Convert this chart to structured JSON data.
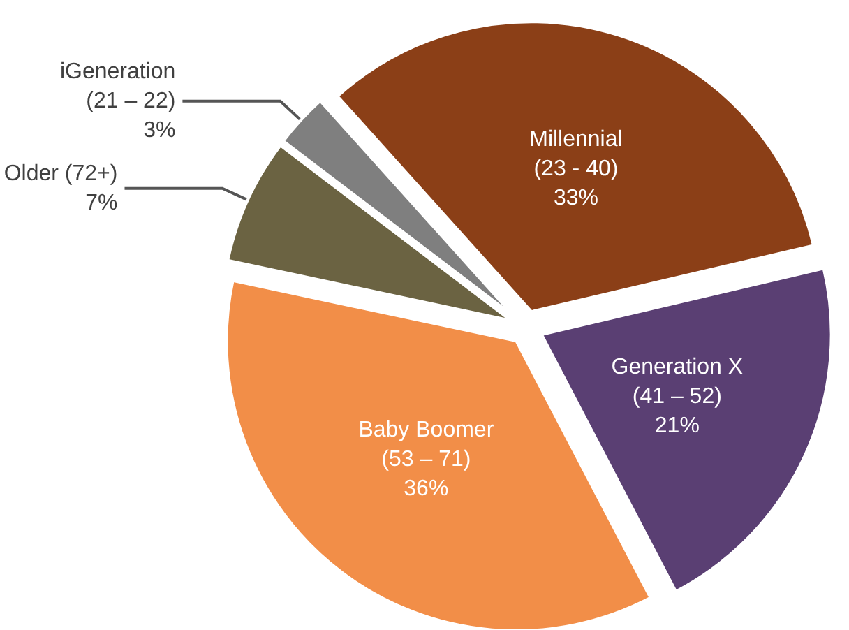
{
  "chart_data": {
    "type": "pie",
    "categories": [
      "Millennial\n(23 - 40)",
      "Generation X\n(41 – 52)",
      "Baby Boomer\n(53 – 71)",
      "Older (72+)",
      "iGeneration\n(21 – 22)"
    ],
    "values": [
      33,
      21,
      36,
      7,
      3
    ],
    "value_labels": [
      "33%",
      "21%",
      "36%",
      "7%",
      "3%"
    ],
    "colors": [
      "#8b3f17",
      "#5a3f73",
      "#f28e48",
      "#6b6342",
      "#7f7f7f"
    ],
    "legend": false
  }
}
